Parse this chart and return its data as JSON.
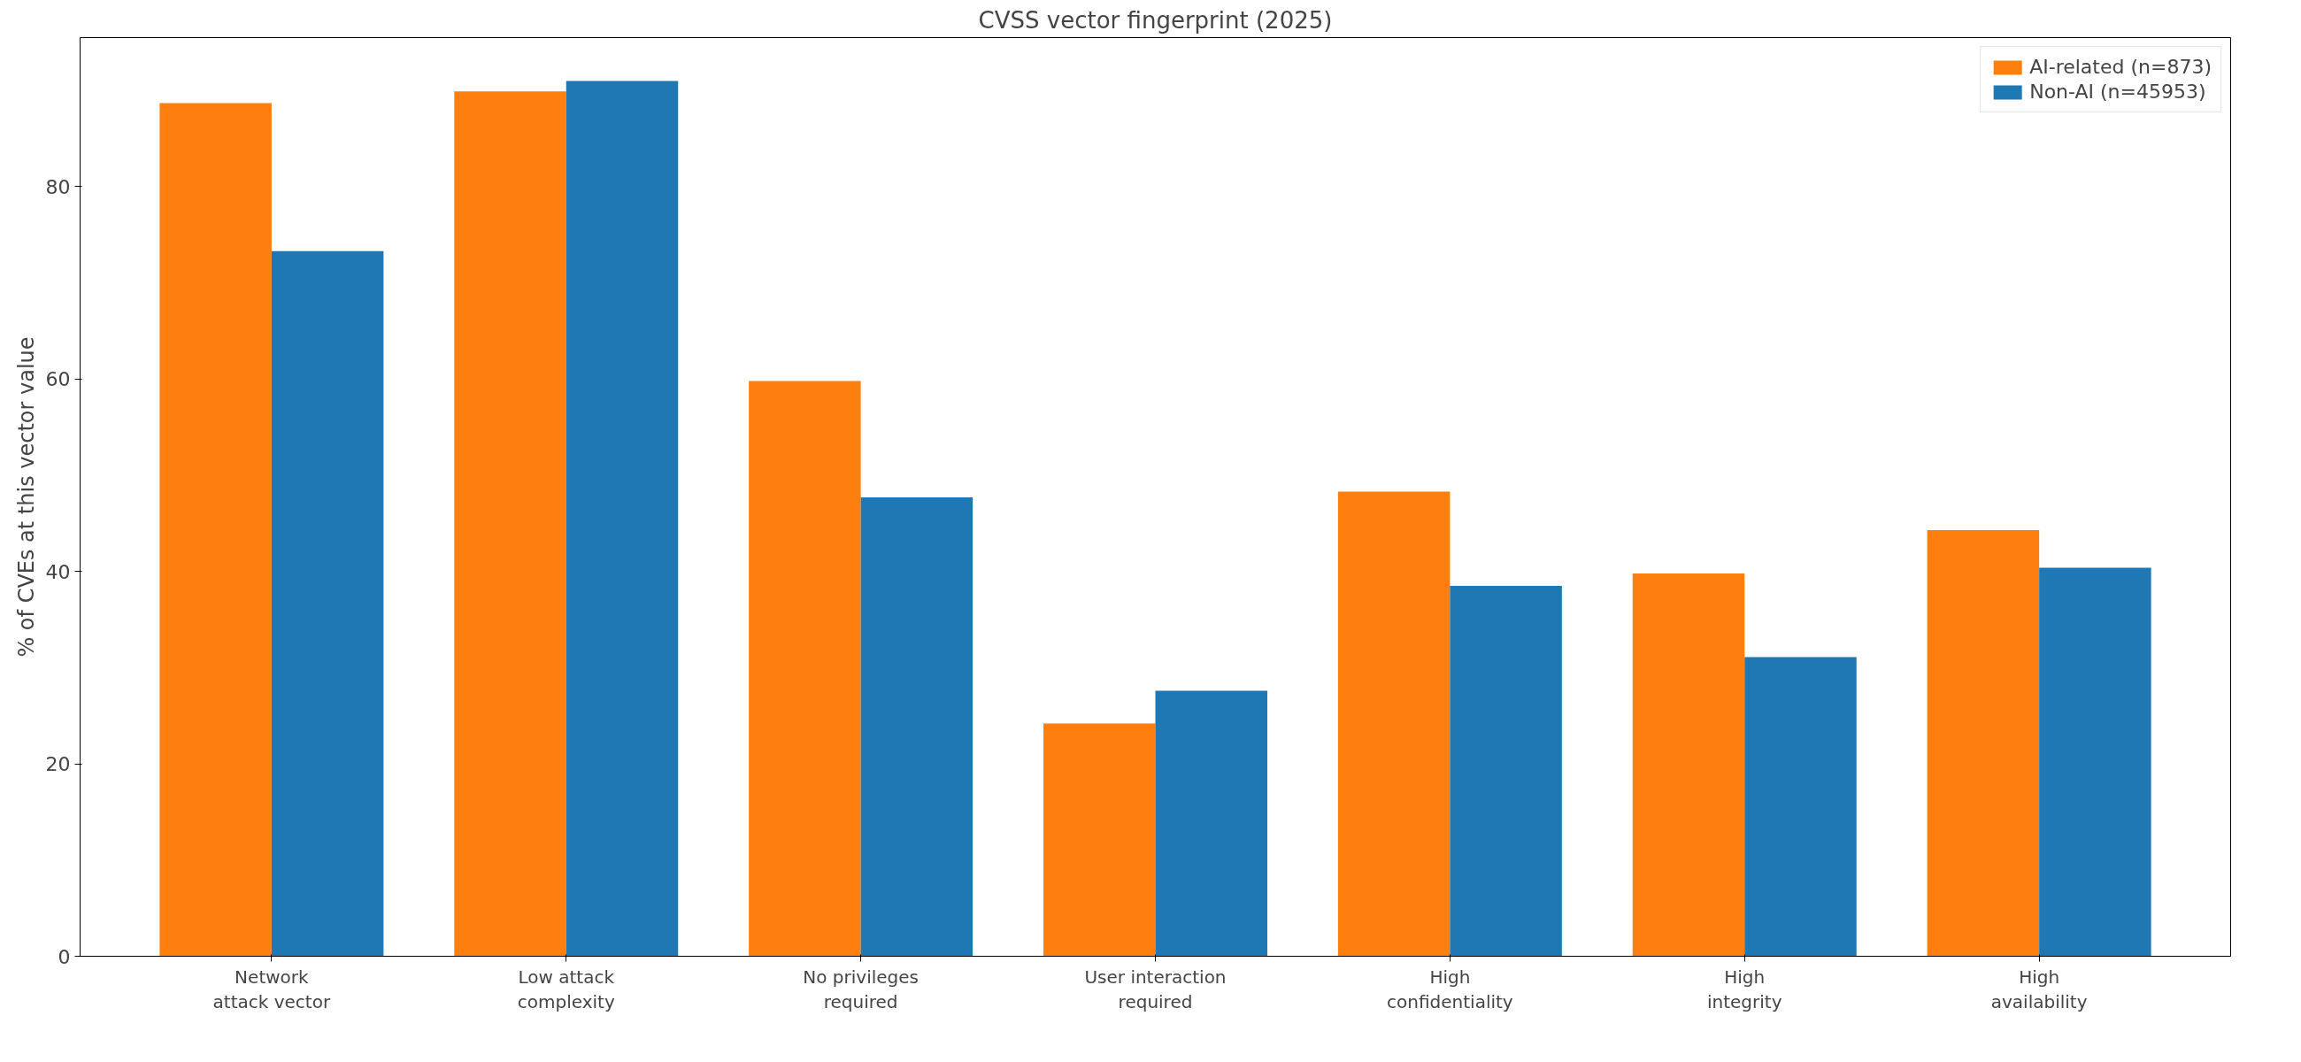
{
  "chart_data": {
    "type": "bar",
    "title": "CVSS vector fingerprint (2025)",
    "ylabel": "% of CVEs at this vector value",
    "categories": [
      "Network\nattack vector",
      "Low attack\ncomplexity",
      "No privileges\nrequired",
      "User interaction\nrequired",
      "High\nconfidentiality",
      "High\nintegrity",
      "High\navailability"
    ],
    "series": [
      {
        "name": "AI-related (n=873)",
        "color": "#ff7f0e",
        "values": [
          88.7,
          89.9,
          59.8,
          24.2,
          48.3,
          39.8,
          44.3
        ]
      },
      {
        "name": "Non-AI (n=45953)",
        "color": "#1f77b4",
        "values": [
          73.3,
          91.0,
          47.7,
          27.6,
          38.5,
          31.1,
          40.4
        ]
      }
    ],
    "ylim": [
      0,
      95.5
    ],
    "yticks": [
      0,
      20,
      40,
      60,
      80
    ],
    "legend": "top right",
    "grid": false
  }
}
